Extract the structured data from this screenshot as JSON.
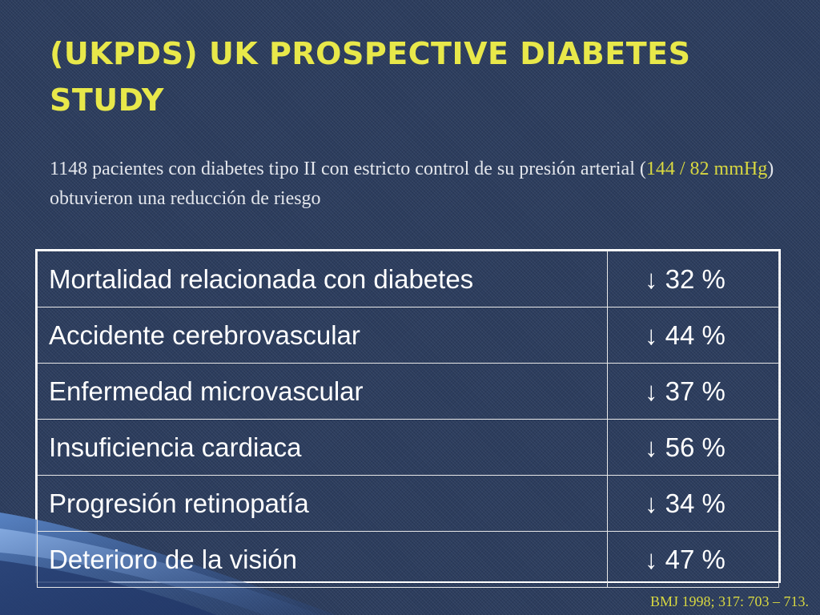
{
  "slide": {
    "title": "(UKPDS)  UK PROSPECTIVE DIABETES STUDY",
    "intro": {
      "before": "1148 pacientes con diabetes tipo II con estricto control de su presión arterial (",
      "highlight": "144 / 82 mmHg",
      "after": ") obtuvieron una reducción de riesgo"
    },
    "table": {
      "rows": [
        {
          "outcome": "Mortalidad relacionada con diabetes",
          "reduction": "↓ 32 %"
        },
        {
          "outcome": "Accidente cerebrovascular",
          "reduction": "↓ 44 %"
        },
        {
          "outcome": "Enfermedad microvascular",
          "reduction": "↓ 37 %"
        },
        {
          "outcome": "Insuficiencia cardiaca",
          "reduction": "↓ 56 %"
        },
        {
          "outcome": "Progresión retinopatía",
          "reduction": "↓ 34 %"
        },
        {
          "outcome": "Deterioro de la visión",
          "reduction": "↓ 47 %"
        }
      ]
    },
    "citation": "BMJ 1998; 317: 703 – 713."
  },
  "colors": {
    "background": "#2c3d5e",
    "title": "#e8e84a",
    "highlight": "#d8d840",
    "text": "#ffffff"
  }
}
